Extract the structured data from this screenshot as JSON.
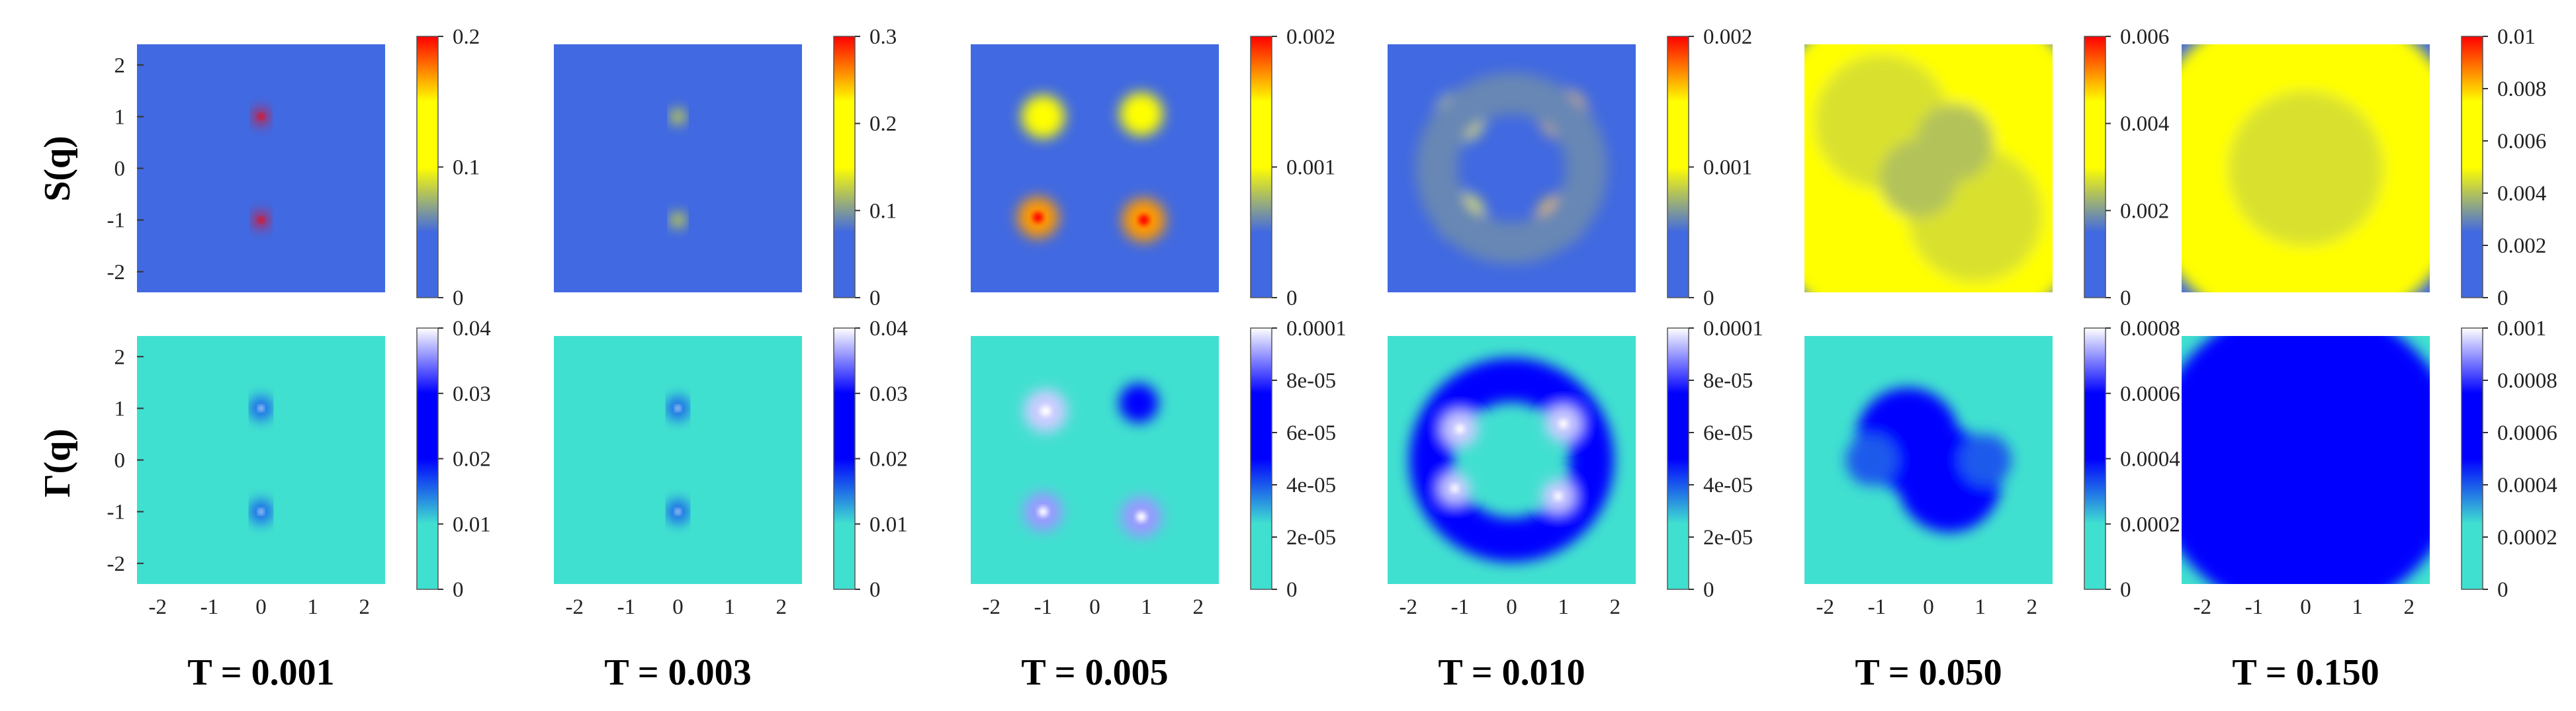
{
  "chart_data": {
    "type": "heatmap",
    "rows": [
      {
        "label": "S(q)",
        "colormap": [
          "#4169e1",
          "#4169e1",
          "#ffff00",
          "#ffff00",
          "#ff0000"
        ],
        "background": "#4169e1"
      },
      {
        "label": "Γ(q)",
        "colormap": [
          "#40e0d0",
          "#40e0d0",
          "#0000ff",
          "#0000ff",
          "#ffffff"
        ],
        "background": "#40e0d0"
      }
    ],
    "axes": {
      "xlim": [
        -2.4,
        2.4
      ],
      "ylim": [
        -2.4,
        2.4
      ],
      "xticks": [
        "-2",
        "-1",
        "0",
        "1",
        "2"
      ],
      "yticks": [
        "2",
        "1",
        "0",
        "-1",
        "-2"
      ]
    },
    "panels": [
      {
        "temperature": "T = 0.001",
        "S": {
          "colorbar": [
            "0.2",
            "0.1",
            "0"
          ],
          "blobs": [
            {
              "x": 0,
              "y": 1,
              "r": 0.14,
              "v": 1.0
            },
            {
              "x": 0,
              "y": -1,
              "r": 0.14,
              "v": 1.0
            }
          ]
        },
        "G": {
          "colorbar": [
            "0.04",
            "0.03",
            "0.02",
            "0.01",
            "0"
          ],
          "blobs": [
            {
              "x": 0,
              "y": 1,
              "r": 0.15,
              "v": 0.7,
              "ring": true
            },
            {
              "x": 0,
              "y": -1,
              "r": 0.15,
              "v": 0.7,
              "ring": true
            }
          ]
        }
      },
      {
        "temperature": "T = 0.003",
        "S": {
          "colorbar": [
            "0.3",
            "0.2",
            "0.1",
            "0"
          ],
          "blobs": [
            {
              "x": 0,
              "y": 1,
              "r": 0.13,
              "v": 0.75
            },
            {
              "x": 0,
              "y": -1,
              "r": 0.13,
              "v": 0.75
            }
          ]
        },
        "G": {
          "colorbar": [
            "0.04",
            "0.03",
            "0.02",
            "0.01",
            "0"
          ],
          "blobs": [
            {
              "x": 0,
              "y": 1,
              "r": 0.15,
              "v": 0.7,
              "ring": true
            },
            {
              "x": 0,
              "y": -1,
              "r": 0.15,
              "v": 0.7,
              "ring": true
            }
          ]
        }
      },
      {
        "temperature": "T = 0.005",
        "S": {
          "colorbar": [
            "0.002",
            "0.001",
            "0"
          ],
          "blobs": [
            {
              "x": -1.0,
              "y": 1.0,
              "r": 0.42,
              "v": 0.72
            },
            {
              "x": 0.9,
              "y": 1.05,
              "r": 0.42,
              "v": 0.72
            },
            {
              "x": -1.1,
              "y": -0.95,
              "r": 0.4,
              "v": 0.85
            },
            {
              "x": 0.95,
              "y": -1.0,
              "r": 0.42,
              "v": 0.85
            }
          ]
        },
        "G": {
          "colorbar": [
            "0.0001",
            "8e-05",
            "6e-05",
            "4e-05",
            "2e-05",
            "0"
          ],
          "blobs": [
            {
              "x": -0.95,
              "y": 0.95,
              "r": 0.42,
              "v": 0.95
            },
            {
              "x": 0.85,
              "y": 1.1,
              "r": 0.38,
              "v": 0.75
            },
            {
              "x": -1.0,
              "y": -1.0,
              "r": 0.38,
              "v": 0.9
            },
            {
              "x": 0.9,
              "y": -1.1,
              "r": 0.4,
              "v": 0.9
            }
          ]
        }
      },
      {
        "temperature": "T = 0.010",
        "S": {
          "colorbar": [
            "0.002",
            "0.001",
            "0"
          ],
          "blobs": [
            {
              "x": -1.0,
              "y": 1.0,
              "r": 0.48,
              "v": 0.72
            },
            {
              "x": 1.0,
              "y": 1.05,
              "r": 0.48,
              "v": 0.8
            },
            {
              "x": -1.0,
              "y": -0.95,
              "r": 0.48,
              "v": 0.72
            },
            {
              "x": 0.95,
              "y": -1.0,
              "r": 0.48,
              "v": 0.8
            },
            {
              "x": 0,
              "y": 0,
              "r": 1.45,
              "v": 0.3,
              "ring": true
            }
          ]
        },
        "G": {
          "colorbar": [
            "0.0001",
            "8e-05",
            "6e-05",
            "4e-05",
            "2e-05",
            "0"
          ],
          "blobs": [
            {
              "x": 0,
              "y": 0,
              "r": 1.55,
              "v": 0.62,
              "ring": true
            },
            {
              "x": -1.0,
              "y": 0.6,
              "r": 0.35,
              "v": 0.95
            },
            {
              "x": 1.0,
              "y": 0.7,
              "r": 0.35,
              "v": 0.95
            },
            {
              "x": -1.1,
              "y": -0.55,
              "r": 0.3,
              "v": 0.95
            },
            {
              "x": 0.9,
              "y": -0.7,
              "r": 0.32,
              "v": 0.95
            }
          ]
        }
      },
      {
        "temperature": "T = 0.050",
        "S": {
          "colorbar": [
            "0.006",
            "0.004",
            "0.002",
            "0"
          ],
          "blobs": [
            {
              "x": 0,
              "y": 0,
              "r": 3.4,
              "v": 0.55
            },
            {
              "x": -0.9,
              "y": 0.9,
              "r": 1.3,
              "v": 0.45
            },
            {
              "x": 0.9,
              "y": -0.9,
              "r": 1.3,
              "v": 0.45
            },
            {
              "x": -0.2,
              "y": -0.2,
              "r": 0.75,
              "v": 0.4
            },
            {
              "x": 0.5,
              "y": 0.5,
              "r": 0.75,
              "v": 0.4
            }
          ]
        },
        "G": {
          "colorbar": [
            "0.0008",
            "0.0006",
            "0.0004",
            "0.0002",
            "0"
          ],
          "blobs": [
            {
              "x": -0.4,
              "y": 0.4,
              "r": 1.0,
              "v": 0.5
            },
            {
              "x": 0.4,
              "y": -0.4,
              "r": 1.0,
              "v": 0.5
            },
            {
              "x": -1.1,
              "y": 0.0,
              "r": 0.5,
              "v": 0.4
            },
            {
              "x": 1.1,
              "y": 0.0,
              "r": 0.5,
              "v": 0.4
            }
          ]
        }
      },
      {
        "temperature": "T = 0.150",
        "S": {
          "colorbar": [
            "0.01",
            "0.008",
            "0.006",
            "0.004",
            "0.002",
            "0"
          ],
          "blobs": [
            {
              "x": 0,
              "y": 0,
              "r": 3.2,
              "v": 0.55
            },
            {
              "x": 0,
              "y": 0,
              "r": 1.5,
              "v": 0.45
            }
          ]
        },
        "G": {
          "colorbar": [
            "0.001",
            "0.0008",
            "0.0006",
            "0.0004",
            "0.0002",
            "0"
          ],
          "blobs": [
            {
              "x": 0,
              "y": 0,
              "r": 3.0,
              "v": 0.5
            },
            {
              "x": 0,
              "y": 0,
              "r": 1.5,
              "v": 0.5
            }
          ]
        }
      }
    ]
  }
}
